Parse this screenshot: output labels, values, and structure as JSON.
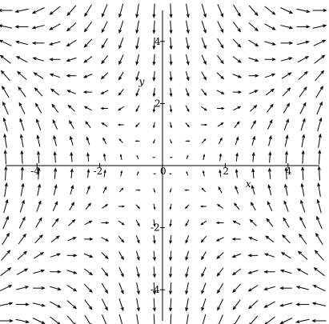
{
  "chart_data": {
    "type": "direction-field",
    "field": {
      "u": "x*y",
      "v": "x^2 - y^2"
    },
    "xlabel": "x",
    "ylabel": "y",
    "xlim": [
      -5,
      5
    ],
    "ylim": [
      -5,
      5
    ],
    "x_ticks": [
      -4,
      -2,
      0,
      2,
      4
    ],
    "y_ticks": [
      -4,
      -2,
      2,
      4
    ],
    "x_tick_labels": [
      "-4",
      "-2",
      "0",
      "2",
      "4"
    ],
    "y_tick_labels": [
      "-4",
      "-2",
      "2",
      "4"
    ],
    "grid": false,
    "arrow_color": "#000000",
    "samples_per_axis": 20
  }
}
